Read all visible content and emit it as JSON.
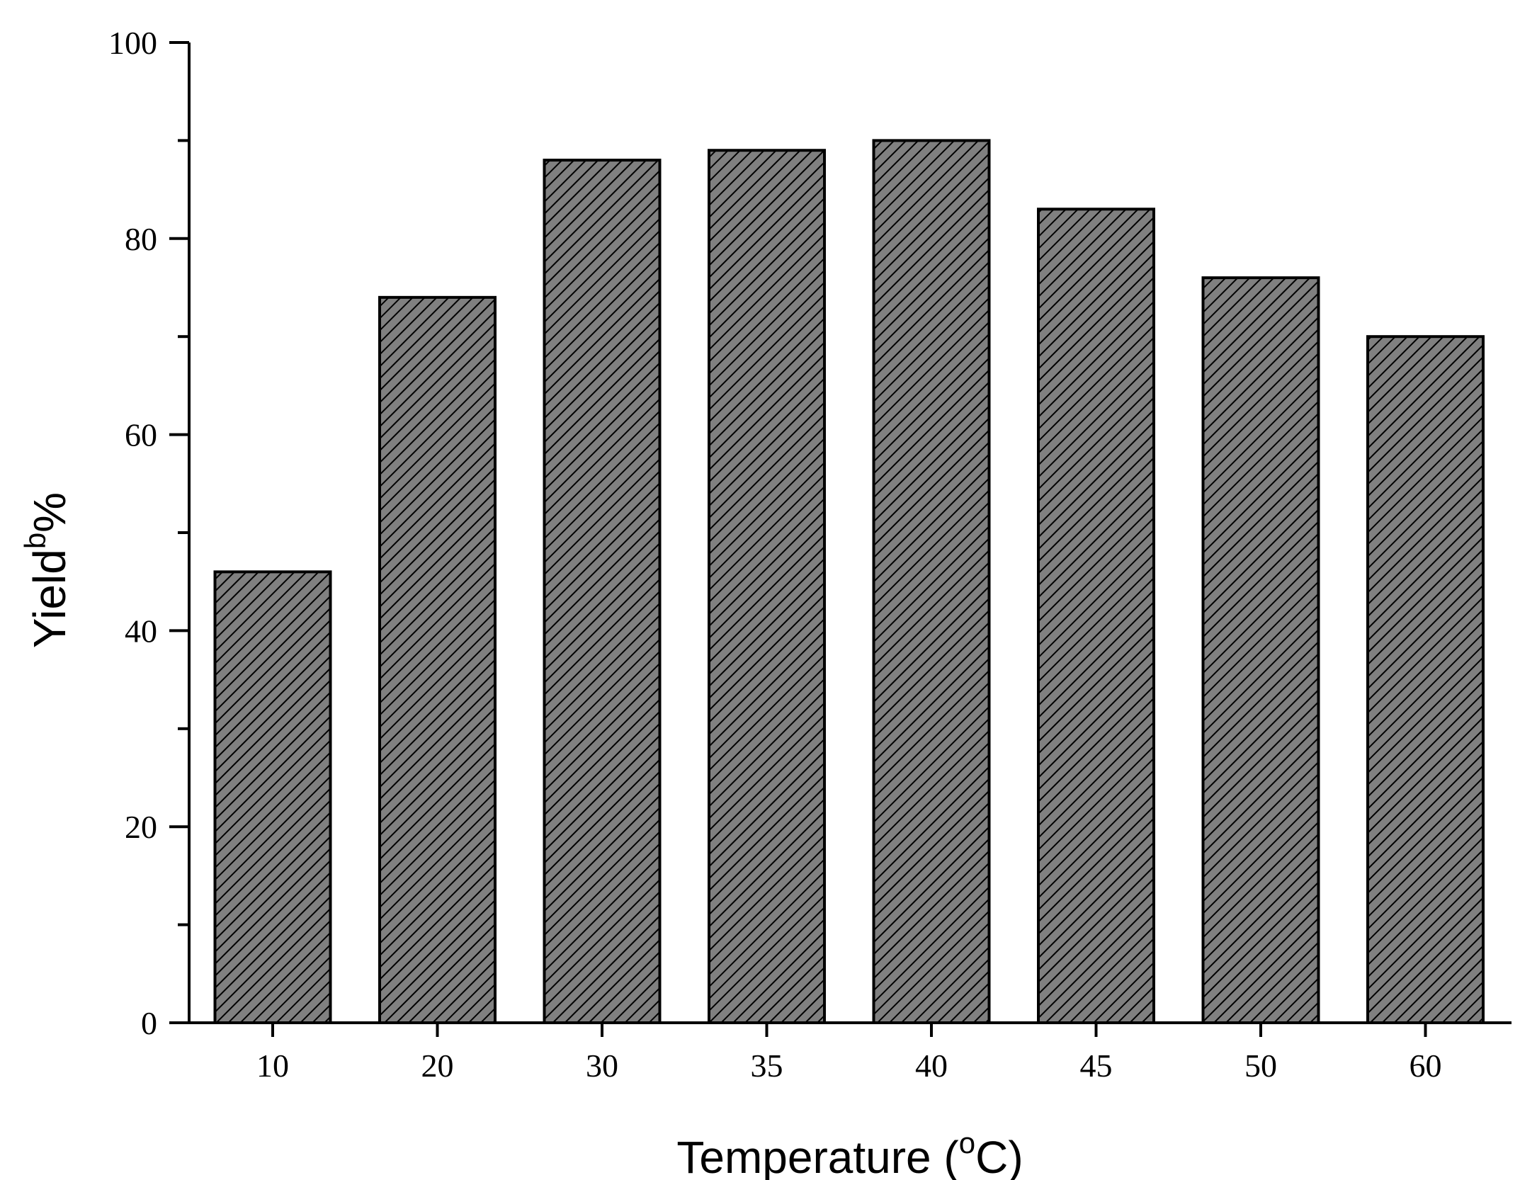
{
  "chart_data": {
    "type": "bar",
    "categories": [
      "10",
      "20",
      "30",
      "35",
      "40",
      "45",
      "50",
      "60"
    ],
    "values": [
      46,
      74,
      88,
      89,
      90,
      83,
      76,
      70
    ],
    "xlabel": "Temperature (",
    "xlabel_sup": "o",
    "xlabel_tail": "C)",
    "ylabel": "Yield",
    "ylabel_sup": "b",
    "ylabel_tail": "%",
    "ylim": [
      0,
      100
    ],
    "yticks_major": [
      0,
      20,
      40,
      60,
      80,
      100
    ],
    "yticks_minor": [
      10,
      30,
      50,
      70,
      90
    ],
    "bar_fill": "#808080",
    "bar_hatch": "diagonal",
    "bar_stroke": "#000000",
    "grid": false,
    "legend": "none"
  }
}
